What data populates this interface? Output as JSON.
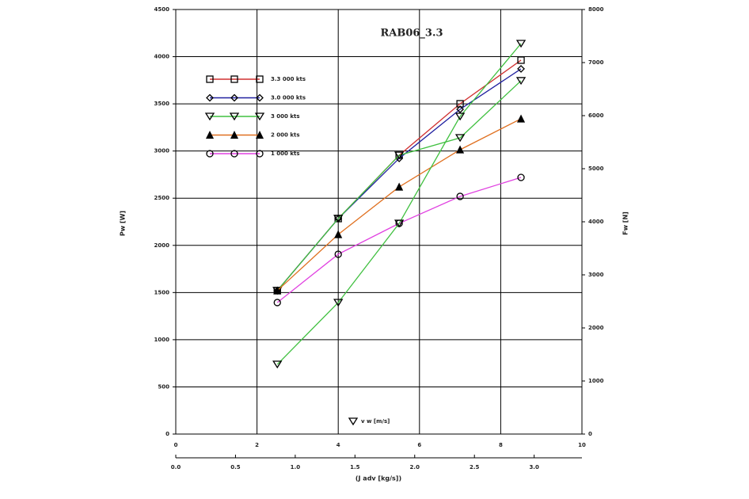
{
  "chart_data": {
    "type": "line",
    "title": "RAB06_3.3",
    "x": [
      2.5,
      4.0,
      5.5,
      7.0,
      8.5
    ],
    "xlim": [
      0,
      10
    ],
    "xticks": [
      0,
      2,
      4,
      6,
      8,
      10
    ],
    "x2lim": [
      0,
      3.4
    ],
    "x2ticks": [
      {
        "value": 0,
        "label": "0.0"
      },
      0.5,
      {
        "value": 1,
        "label": "1.0"
      },
      1.5,
      {
        "value": 2,
        "label": "2.0"
      },
      2.5,
      {
        "value": 3,
        "label": "3.0"
      }
    ],
    "x2label": "(J adv [kg/s])",
    "ylim": [
      0,
      4500
    ],
    "yticks": [
      0,
      500,
      1000,
      1500,
      2000,
      2500,
      3000,
      3500,
      4000,
      4500
    ],
    "y2lim": [
      0,
      8000
    ],
    "y2ticks": [
      0,
      1000,
      2000,
      3000,
      4000,
      5000,
      6000,
      7000,
      8000
    ],
    "ylabel": "Pw [W]",
    "y2label": "Fw [N]",
    "grid": true,
    "series": [
      {
        "name": "3.3 000 kts",
        "color": "#d03030",
        "marker": "square",
        "values": [
          1520,
          2284,
          2955,
          3501,
          3963
        ]
      },
      {
        "name": "3.0 000 kts",
        "color": "#2020a0",
        "marker": "diamond",
        "values": [
          1520,
          2284,
          2922,
          3442,
          3871
        ]
      },
      {
        "name": "3 000 kts",
        "color": "#40c040",
        "marker": "triangle-down",
        "values": [
          1520,
          2284,
          2955,
          3140,
          3745
        ]
      },
      {
        "name": "2 000 kts",
        "color": "#e07020",
        "marker": "triangle-up",
        "values": [
          1520,
          2116,
          2620,
          3014,
          3342
        ]
      },
      {
        "name": "1 000 kts",
        "color": "#e040e0",
        "marker": "circle",
        "values": [
          1394,
          1906,
          2233,
          2519,
          2720
        ]
      },
      {
        "name": "v w [m/s]",
        "color": "#40c040",
        "marker": "triangle-down",
        "axis": "y2",
        "values": [
          1313,
          2478,
          3970,
          5985,
          7358
        ]
      }
    ]
  }
}
